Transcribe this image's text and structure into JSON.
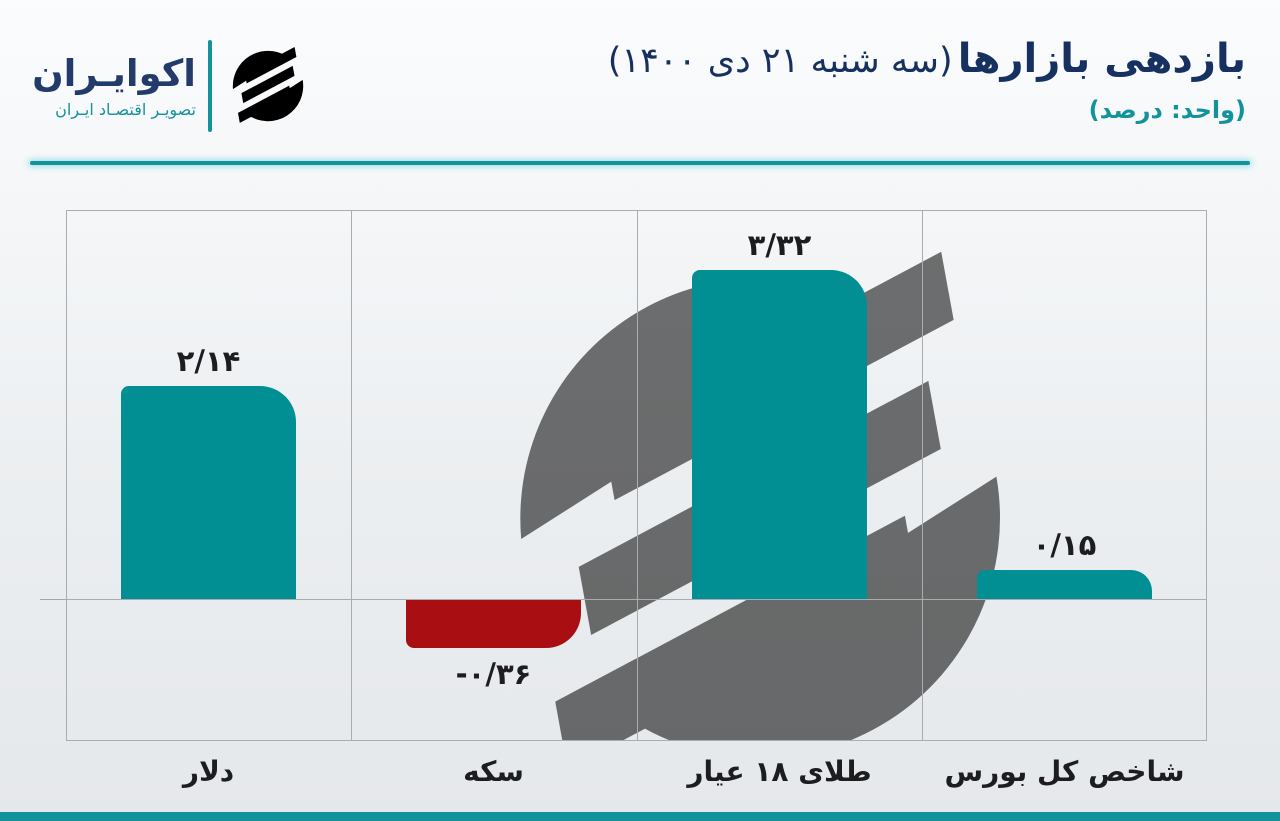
{
  "page": {
    "accent_teal": "#12929A",
    "navy": "#16315F",
    "background_top": "#FBFCFD",
    "background_bottom": "#E5E8EB"
  },
  "logo": {
    "name": "اکوایـران",
    "tagline": "تصویـر اقتصـاد ایـران",
    "icon": "ecoiran-swoosh-icon",
    "name_color": "#233B6B",
    "tagline_color": "#14939B"
  },
  "header": {
    "title_bold": "بازدهی بازارها",
    "title_date": "(سه شنبه ۲۱ دی ۱۴۰۰)",
    "unit_note": "(واحد: درصد)"
  },
  "chart_data": {
    "type": "bar",
    "title": "بازدهی بازارها (سه شنبه ۲۱ دی ۱۴۰۰)",
    "unit": "درصد",
    "categories": [
      "دلار",
      "سکه",
      "طلای ۱۸ عیار",
      "شاخص کل بورس"
    ],
    "values": [
      2.14,
      -0.36,
      3.32,
      0.15
    ],
    "value_labels": [
      "۲/۱۴",
      "-۰/۳۶",
      "۳/۳۲",
      "۰/۱۵"
    ],
    "positive_color": "#018F94",
    "negative_color": "#A90F12",
    "label_color": "#1D1D20",
    "baseline": 0,
    "ylim": [
      -1.4,
      3.9
    ],
    "grid": "column-dividers-and-baseline",
    "grid_color": "#A8ADB2",
    "legend": false,
    "watermark": "ecoiran-swoosh-ghost"
  },
  "footer": {
    "accent_bar_color": "#12929A"
  }
}
